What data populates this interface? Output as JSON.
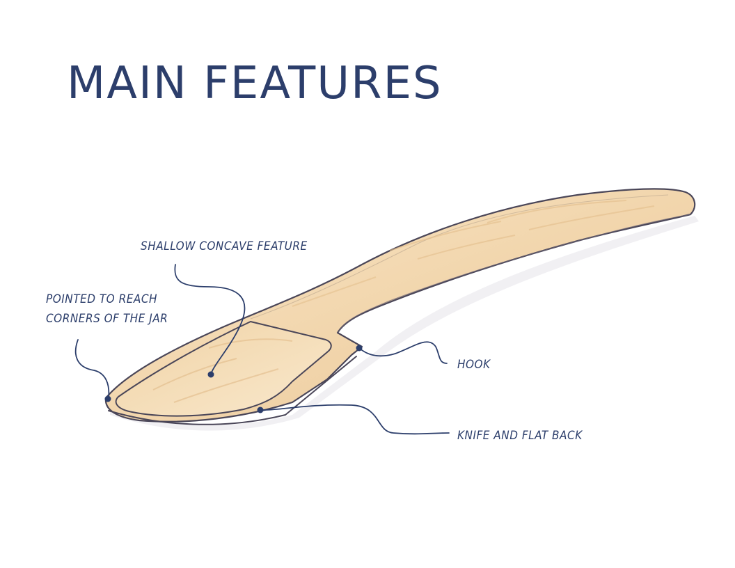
{
  "title": "MAIN FEATURES",
  "callouts": {
    "concave": "SHALLOW CONCAVE FEATURE",
    "pointed_line1": "POINTED TO REACH",
    "pointed_line2": "CORNERS OF THE JAR",
    "hook": "HOOK",
    "knife": "KNIFE AND FLAT BACK"
  },
  "colors": {
    "text": "#2c3e6b",
    "wood_light": "#f6dfbd",
    "wood_mid": "#eccb9c",
    "outline": "#4a4658"
  },
  "icons": {
    "illustration": "wooden-spatula-spoon",
    "leader_dot": "callout-dot"
  }
}
